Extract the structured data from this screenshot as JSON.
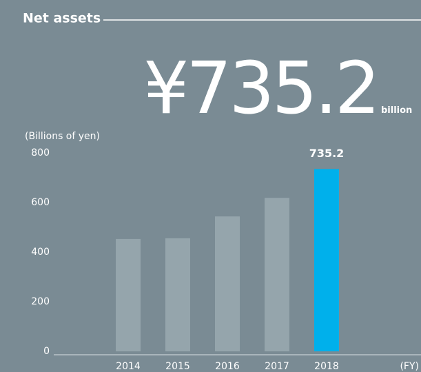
{
  "chart_data": {
    "type": "bar",
    "title": "Net assets",
    "headline": "¥735.2",
    "headline_unit": "billion",
    "y_axis_label": "(Billions of yen)",
    "x_axis_label": "(FY)",
    "categories": [
      "2014",
      "2015",
      "2016",
      "2017",
      "2018"
    ],
    "values": [
      453,
      456,
      544,
      619,
      735.2
    ],
    "colors": [
      "#95a5ac",
      "#95a5ac",
      "#95a5ac",
      "#95a5ac",
      "#00b0eb"
    ],
    "data_labels": [
      4
    ],
    "ylim": [
      0,
      800
    ],
    "yticks": [
      0,
      200,
      400,
      600,
      800
    ],
    "grid": false
  }
}
